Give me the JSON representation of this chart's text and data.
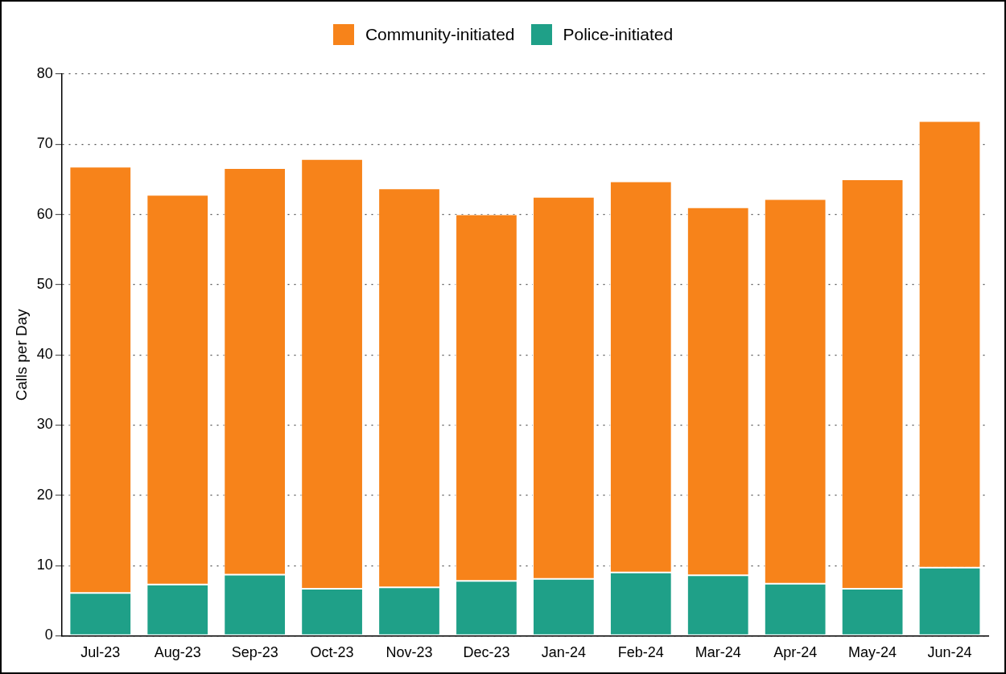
{
  "chart_data": {
    "type": "bar",
    "ylabel": "Calls per Day",
    "categories": [
      "Jul-23",
      "Aug-23",
      "Sep-23",
      "Oct-23",
      "Nov-23",
      "Dec-23",
      "Jan-24",
      "Feb-24",
      "Mar-24",
      "Apr-24",
      "May-24",
      "Jun-24"
    ],
    "series": [
      {
        "name": "Police-initiated",
        "color": "#1fa088",
        "values": [
          6.1,
          7.3,
          8.7,
          6.7,
          6.9,
          7.8,
          8.1,
          9.0,
          8.6,
          7.4,
          6.7,
          9.7
        ]
      },
      {
        "name": "Community-initiated",
        "color": "#f7831a",
        "values": [
          60.7,
          55.5,
          57.9,
          61.2,
          56.8,
          52.2,
          54.4,
          55.7,
          52.4,
          54.8,
          58.3,
          63.6
        ]
      }
    ],
    "stacked": true,
    "ylim": [
      0,
      80
    ],
    "yticks": [
      0,
      10,
      20,
      30,
      40,
      50,
      60,
      70,
      80
    ],
    "grid": "y",
    "legend": "top"
  }
}
